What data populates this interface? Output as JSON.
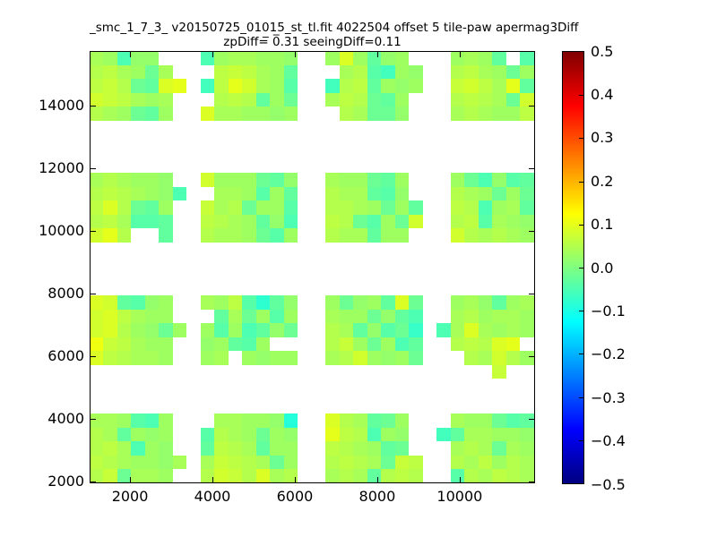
{
  "figure": {
    "title_line1": "_smc_1_7_3_ v20150725_01015_st_tl.fit 4022504 offset 5 tile-paw apermag3Diff",
    "title_line2": "zpDiff=̅ 0̅.31 seeingDiff=0.11"
  },
  "chart_data": {
    "type": "heatmap",
    "title": "_smc_1_7_3_ v20150725_01015_st_tl.fit 4022504 offset 5 tile-paw apermag3Diff",
    "subtitle": "zpDiff= 0.31 seeingDiff=0.11",
    "zpDiff": 0.31,
    "seeingDiff": 0.11,
    "quantity": "apermag3Diff",
    "grid": false,
    "xlim": [
      1020,
      11830
    ],
    "ylim": [
      1930,
      15730
    ],
    "xticks": [
      {
        "v": 2000,
        "label": "2000"
      },
      {
        "v": 4000,
        "label": "4000"
      },
      {
        "v": 6000,
        "label": "6000"
      },
      {
        "v": 8000,
        "label": "8000"
      },
      {
        "v": 10000,
        "label": "10000"
      }
    ],
    "yticks": [
      {
        "v": 2000,
        "label": "2000"
      },
      {
        "v": 4000,
        "label": "4000"
      },
      {
        "v": 6000,
        "label": "6000"
      },
      {
        "v": 8000,
        "label": "8000"
      },
      {
        "v": 10000,
        "label": "10000"
      },
      {
        "v": 12000,
        "label": "12000"
      },
      {
        "v": 14000,
        "label": "14000"
      }
    ],
    "colorbar": {
      "colormap": "jet",
      "vmin": -0.5,
      "vmax": 0.5,
      "position": "right",
      "ticks": [
        {
          "v": 0.5,
          "label": "0.5"
        },
        {
          "v": 0.4,
          "label": "0.4"
        },
        {
          "v": 0.3,
          "label": "0.3"
        },
        {
          "v": 0.2,
          "label": "0.2"
        },
        {
          "v": 0.1,
          "label": "0.1"
        },
        {
          "v": 0.0,
          "label": "0.0"
        },
        {
          "v": -0.1,
          "label": "−0.1"
        },
        {
          "v": -0.2,
          "label": "−0.2"
        },
        {
          "v": -0.3,
          "label": "−0.3"
        },
        {
          "v": -0.4,
          "label": "−0.4"
        },
        {
          "v": -0.5,
          "label": "−0.5"
        }
      ]
    },
    "cell_dx": 337,
    "cell_dy": 443,
    "patches": [
      {
        "x0": 1020,
        "ytop": 15730,
        "values": [
          [
            0.04,
            0.03,
            -0.05,
            0.02,
            0.02,
            null,
            null
          ],
          [
            0.05,
            0.06,
            0.04,
            0.03,
            -0.02,
            0.04,
            null
          ],
          [
            0.06,
            0.07,
            0.05,
            -0.02,
            -0.03,
            0.09,
            0.1
          ],
          [
            0.08,
            0.07,
            0.06,
            0.04,
            0.03,
            0.04,
            null
          ],
          [
            0.05,
            0.04,
            0.03,
            -0.02,
            -0.03,
            0.03,
            null
          ]
        ]
      },
      {
        "x0": 3717,
        "ytop": 15730,
        "values": [
          [
            -0.05,
            0.03,
            0.04,
            0.04,
            0.03,
            0.03,
            0.02
          ],
          [
            null,
            0.06,
            0.07,
            0.06,
            0.04,
            0.03,
            -0.03
          ],
          [
            -0.06,
            0.06,
            0.1,
            0.08,
            0.04,
            0.03,
            -0.04
          ],
          [
            null,
            0.05,
            0.06,
            0.05,
            -0.03,
            0.03,
            -0.02
          ],
          [
            0.09,
            0.04,
            0.04,
            0.03,
            0.03,
            0.02,
            0.03
          ]
        ]
      },
      {
        "x0": 6751,
        "ytop": 15730,
        "values": [
          [
            0.03,
            0.09,
            0.03,
            -0.03,
            0.02,
            0.03,
            null
          ],
          [
            null,
            0.04,
            0.05,
            -0.04,
            -0.06,
            0.03,
            0.02
          ],
          [
            -0.06,
            0.05,
            0.06,
            -0.03,
            0.03,
            0.02,
            0.03
          ],
          [
            0.04,
            0.06,
            0.05,
            -0.02,
            -0.03,
            0.03,
            null
          ],
          [
            null,
            0.05,
            0.04,
            -0.02,
            -0.02,
            0.02,
            null
          ]
        ]
      },
      {
        "x0": 9785,
        "ytop": 15730,
        "values": [
          [
            0.03,
            0.04,
            0.03,
            -0.03,
            null,
            -0.04
          ],
          [
            0.05,
            0.06,
            0.04,
            0.03,
            -0.02,
            0.03
          ],
          [
            0.07,
            0.08,
            0.06,
            0.04,
            0.1,
            -0.03
          ],
          [
            0.05,
            0.06,
            0.05,
            0.04,
            -0.02,
            0.08
          ],
          [
            0.04,
            0.05,
            0.04,
            0.03,
            0.03,
            0.06
          ]
        ]
      },
      {
        "x0": 1020,
        "ytop": 11844,
        "values": [
          [
            0.04,
            0.05,
            0.04,
            0.03,
            0.03,
            0.02,
            null
          ],
          [
            0.05,
            0.06,
            0.05,
            0.04,
            0.03,
            0.02,
            -0.05
          ],
          [
            0.06,
            0.09,
            0.05,
            -0.02,
            -0.03,
            0.03,
            null
          ],
          [
            0.05,
            0.06,
            0.04,
            -0.04,
            -0.04,
            -0.03,
            null
          ],
          [
            0.08,
            0.1,
            0.05,
            null,
            null,
            -0.03,
            null
          ]
        ]
      },
      {
        "x0": 3717,
        "ytop": 11844,
        "values": [
          [
            0.08,
            0.03,
            0.03,
            0.03,
            -0.02,
            -0.03,
            0.02
          ],
          [
            null,
            0.04,
            0.04,
            0.03,
            -0.04,
            0.03,
            -0.03
          ],
          [
            0.07,
            0.04,
            0.05,
            -0.02,
            0.03,
            0.03,
            -0.04
          ],
          [
            0.06,
            0.05,
            0.04,
            0.03,
            -0.03,
            0.02,
            -0.05
          ],
          [
            0.05,
            0.04,
            0.04,
            0.03,
            -0.02,
            -0.04,
            0.03
          ]
        ]
      },
      {
        "x0": 6751,
        "ytop": 11844,
        "values": [
          [
            0.04,
            0.03,
            0.03,
            -0.02,
            -0.03,
            0.03,
            null
          ],
          [
            0.05,
            0.04,
            0.04,
            -0.03,
            -0.04,
            0.02,
            null
          ],
          [
            0.05,
            0.05,
            0.04,
            0.03,
            -0.02,
            0.03,
            -0.03
          ],
          [
            0.06,
            0.05,
            -0.02,
            -0.04,
            0.03,
            -0.02,
            0.08
          ],
          [
            0.05,
            0.04,
            0.04,
            -0.03,
            0.03,
            0.03,
            null
          ]
        ]
      },
      {
        "x0": 9785,
        "ytop": 11844,
        "values": [
          [
            0.03,
            -0.02,
            -0.05,
            0.02,
            -0.04,
            -0.03
          ],
          [
            0.05,
            0.04,
            0.03,
            -0.02,
            0.03,
            -0.02
          ],
          [
            0.06,
            0.05,
            -0.05,
            0.03,
            0.04,
            -0.03
          ],
          [
            0.05,
            0.06,
            -0.04,
            0.04,
            0.03,
            0.02
          ],
          [
            0.08,
            0.05,
            0.04,
            0.05,
            0.04,
            0.03
          ]
        ]
      },
      {
        "x0": 1020,
        "ytop": 7930,
        "values": [
          [
            0.09,
            0.08,
            -0.03,
            -0.04,
            0.02,
            0.03,
            null
          ],
          [
            0.08,
            0.09,
            0.06,
            0.04,
            0.03,
            0.03,
            null
          ],
          [
            0.08,
            0.09,
            0.05,
            0.03,
            0.02,
            -0.02,
            0.03
          ],
          [
            0.11,
            0.07,
            0.06,
            0.04,
            0.03,
            0.03,
            null
          ],
          [
            0.09,
            0.06,
            0.05,
            0.04,
            0.04,
            0.03,
            null
          ]
        ]
      },
      {
        "x0": 3717,
        "ytop": 7930,
        "values": [
          [
            0.04,
            0.03,
            0.06,
            -0.04,
            -0.08,
            -0.03,
            0.02
          ],
          [
            null,
            -0.03,
            0.04,
            -0.02,
            0.03,
            -0.04,
            0.03
          ],
          [
            0.03,
            -0.04,
            0.03,
            -0.05,
            -0.03,
            0.02,
            -0.02
          ],
          [
            0.02,
            0.03,
            -0.03,
            -0.04,
            0.03,
            null,
            null
          ],
          [
            0.03,
            0.04,
            null,
            0.03,
            0.02,
            0.03,
            0.03
          ]
        ]
      },
      {
        "x0": 6751,
        "ytop": 7930,
        "values": [
          [
            0.03,
            -0.02,
            0.02,
            0.03,
            -0.03,
            0.09,
            -0.02
          ],
          [
            0.04,
            0.03,
            0.03,
            -0.02,
            0.02,
            -0.03,
            -0.05
          ],
          [
            0.05,
            0.04,
            -0.03,
            0.02,
            -0.04,
            -0.02,
            -0.07
          ],
          [
            0.05,
            0.07,
            0.03,
            -0.02,
            0.03,
            -0.05,
            -0.03
          ],
          [
            0.04,
            0.05,
            0.08,
            0.03,
            0.02,
            0.03,
            -0.02
          ]
        ]
      },
      {
        "x0": 9448,
        "ytop": 7930,
        "values": [
          [
            null,
            0.03,
            0.04,
            0.02,
            -0.03,
            0.03,
            0.04
          ],
          [
            null,
            0.04,
            0.05,
            0.03,
            0.04,
            0.04,
            0.03
          ],
          [
            -0.05,
            0.04,
            0.09,
            0.04,
            0.03,
            0.04,
            0.03
          ],
          [
            null,
            0.05,
            0.06,
            0.05,
            0.09,
            0.1,
            null
          ],
          [
            null,
            null,
            0.05,
            0.04,
            0.08,
            0.05,
            0.03
          ],
          [
            null,
            null,
            null,
            null,
            0.07,
            null,
            null
          ]
        ]
      },
      {
        "x0": 1020,
        "ytop": 4158,
        "values": [
          [
            0.04,
            0.04,
            0.03,
            -0.04,
            -0.05,
            0.03,
            null
          ],
          [
            0.05,
            0.04,
            -0.03,
            0.03,
            0.02,
            0.03,
            null
          ],
          [
            0.05,
            0.06,
            0.04,
            -0.05,
            0.03,
            0.02,
            null
          ],
          [
            0.06,
            0.05,
            0.04,
            0.03,
            0.03,
            0.02,
            0.04
          ],
          [
            0.05,
            0.07,
            -0.02,
            0.04,
            0.04,
            0.03,
            null
          ]
        ]
      },
      {
        "x0": 3717,
        "ytop": 4158,
        "values": [
          [
            null,
            0.04,
            0.04,
            0.03,
            0.03,
            0.02,
            -0.09
          ],
          [
            -0.04,
            0.05,
            0.04,
            0.03,
            -0.02,
            0.03,
            0.02
          ],
          [
            -0.03,
            0.06,
            0.05,
            0.04,
            -0.03,
            0.03,
            0.03
          ],
          [
            0.04,
            0.07,
            0.06,
            0.05,
            0.04,
            -0.02,
            0.03
          ],
          [
            0.05,
            0.08,
            0.07,
            0.05,
            0.09,
            0.04,
            0.05
          ]
        ]
      },
      {
        "x0": 6751,
        "ytop": 4158,
        "values": [
          [
            0.09,
            0.05,
            0.04,
            -0.03,
            -0.02,
            0.03,
            null
          ],
          [
            0.1,
            0.06,
            0.05,
            -0.05,
            0.03,
            0.02,
            null
          ],
          [
            0.06,
            0.05,
            0.04,
            0.03,
            -0.03,
            -0.02,
            null
          ],
          [
            0.05,
            0.06,
            0.05,
            0.04,
            -0.02,
            0.07,
            0.06
          ],
          [
            0.04,
            0.05,
            0.04,
            -0.03,
            0.05,
            0.06,
            0.05
          ]
        ]
      },
      {
        "x0": 9448,
        "ytop": 4158,
        "values": [
          [
            null,
            0.04,
            0.03,
            0.03,
            -0.02,
            -0.04,
            -0.03
          ],
          [
            -0.06,
            -0.03,
            0.04,
            0.04,
            0.03,
            0.03,
            0.02
          ],
          [
            null,
            0.04,
            0.05,
            0.04,
            -0.02,
            0.04,
            0.03
          ],
          [
            null,
            0.05,
            0.04,
            0.06,
            0.03,
            0.05,
            0.04
          ],
          [
            null,
            -0.04,
            0.05,
            0.04,
            0.06,
            0.05,
            0.04
          ]
        ]
      }
    ]
  }
}
